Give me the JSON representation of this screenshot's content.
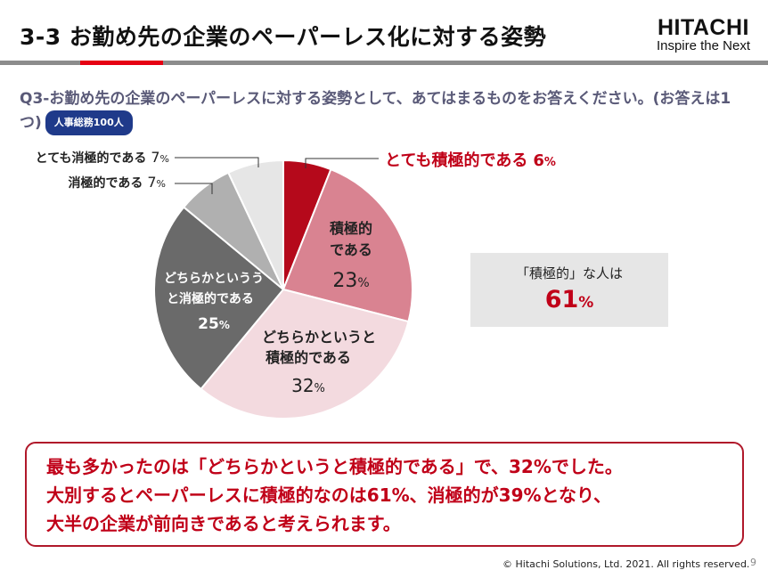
{
  "header": {
    "title": "3-3  お勤め先の企業のペーパーレス化に対する姿勢",
    "logo_brand": "HITACHI",
    "logo_tagline": "Inspire the Next"
  },
  "question": {
    "text": "Q3-お勤め先の企業のペーパーレスに対する姿勢として、あてはまるものをお答えください。(お答えは1つ)",
    "badge": "人事総務100人"
  },
  "chart_data": {
    "type": "pie",
    "slices": [
      {
        "label": "とても積極的である",
        "value": 6,
        "color": "#b5091b"
      },
      {
        "label": "積極的である",
        "value": 23,
        "color": "#d98391"
      },
      {
        "label": "どちらかというと積極的である",
        "value": 32,
        "color": "#f3dadf"
      },
      {
        "label": "どちらかというと消極的である",
        "value": 25,
        "color": "#6a6a6a"
      },
      {
        "label": "消極的である",
        "value": 7,
        "color": "#b0b0b0"
      },
      {
        "label": "とても消極的である",
        "value": 7,
        "color": "#e6e6e6"
      }
    ],
    "unit": "%"
  },
  "labels": {
    "very_positive": {
      "text": "とても積極的である",
      "value": "6",
      "unit": "%"
    },
    "positive": {
      "line1": "積極的",
      "line2": "である",
      "value": "23",
      "unit": "%"
    },
    "somewhat_positive": {
      "line1": "どちらかというと",
      "line2": "積極的である",
      "value": "32",
      "unit": "%"
    },
    "somewhat_negative": {
      "line1": "どちらかというう",
      "line2": "と消極的である",
      "value": "25",
      "unit": "%"
    },
    "negative": {
      "text": "消極的である",
      "value": "7",
      "unit": "%"
    },
    "very_negative": {
      "text": "とても消極的である",
      "value": "7",
      "unit": "%"
    }
  },
  "callout": {
    "line1": "「積極的」な人は",
    "value": "61",
    "unit": "%"
  },
  "summary": {
    "line1": "最も多かったのは「どちらかというと積極的である」で、32%でした。",
    "line2": "大別するとペーパーレスに積極的なのは61%、消極的が39%となり、",
    "line3": "大半の企業が前向きであると考えられます。"
  },
  "footer": {
    "copyright": "© Hitachi Solutions, Ltd. 2021. All rights reserved.",
    "page": "9"
  }
}
